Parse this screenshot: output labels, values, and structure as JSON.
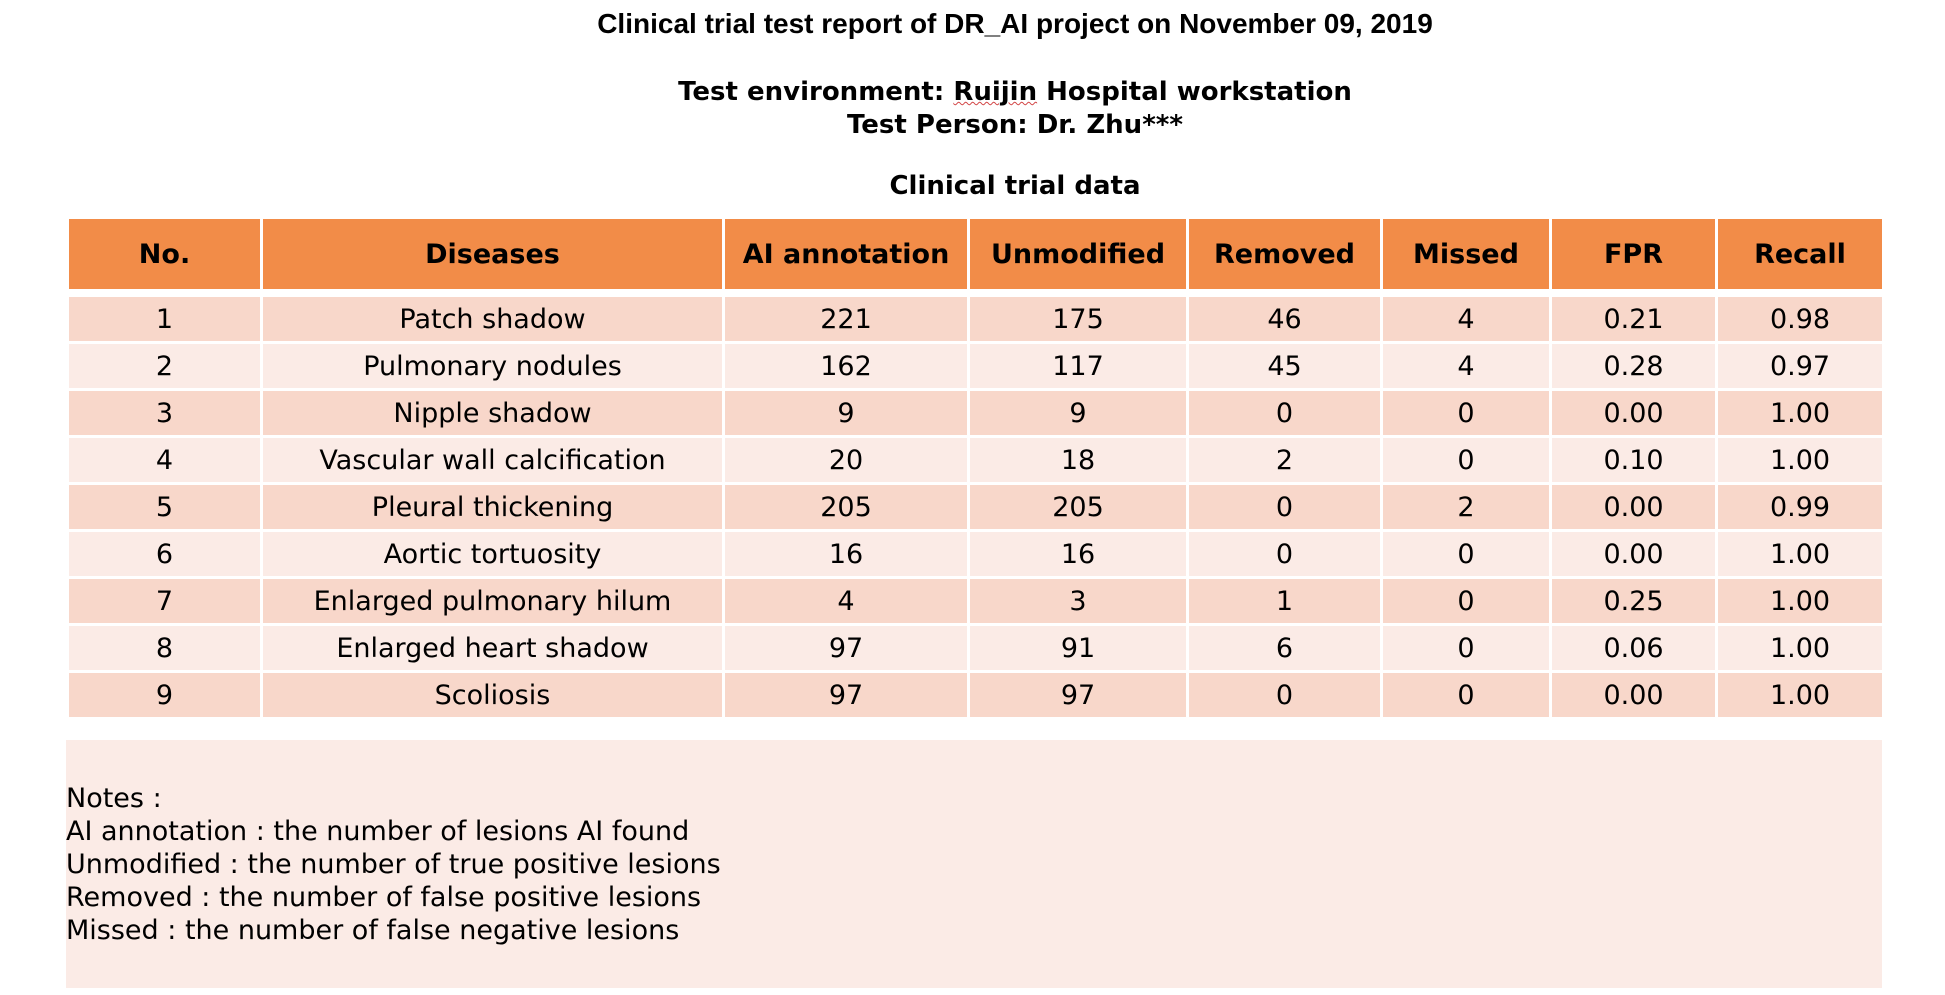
{
  "report": {
    "title": "Clinical trial test report of DR_AI project on November 09, 2019",
    "environment_label": "Test environment: ",
    "environment_hospital": "Ruijin",
    "environment_rest": " Hospital workstation",
    "person": "Test Person: Dr. Zhu***",
    "section_title": "Clinical trial data"
  },
  "table": {
    "headers": [
      "No.",
      "Diseases",
      "AI annotation",
      "Unmodified",
      "Removed",
      "Missed",
      "FPR",
      "Recall"
    ],
    "rows": [
      [
        "1",
        "Patch shadow",
        "221",
        "175",
        "46",
        "4",
        "0.21",
        "0.98"
      ],
      [
        "2",
        "Pulmonary nodules",
        "162",
        "117",
        "45",
        "4",
        "0.28",
        "0.97"
      ],
      [
        "3",
        "Nipple shadow",
        "9",
        "9",
        "0",
        "0",
        "0.00",
        "1.00"
      ],
      [
        "4",
        "Vascular wall calcification",
        "20",
        "18",
        "2",
        "0",
        "0.10",
        "1.00"
      ],
      [
        "5",
        "Pleural thickening",
        "205",
        "205",
        "0",
        "2",
        "0.00",
        "0.99"
      ],
      [
        "6",
        "Aortic tortuosity",
        "16",
        "16",
        "0",
        "0",
        "0.00",
        "1.00"
      ],
      [
        "7",
        "Enlarged pulmonary hilum",
        "4",
        "3",
        "1",
        "0",
        "0.25",
        "1.00"
      ],
      [
        "8",
        "Enlarged heart shadow",
        "97",
        "91",
        "6",
        "0",
        "0.06",
        "1.00"
      ],
      [
        "9",
        "Scoliosis",
        "97",
        "97",
        "0",
        "0",
        "0.00",
        "1.00"
      ]
    ]
  },
  "notes": {
    "lines": [
      "Notes :",
      "AI annotation : the number of lesions AI found",
      "Unmodified : the number of true positive lesions",
      "Removed : the number of false positive lesions",
      "Missed : the number of false negative lesions"
    ]
  },
  "colors": {
    "header_bg": "#f28c48",
    "row_odd_bg": "#f8d7ca",
    "row_even_bg": "#fbebe6"
  }
}
